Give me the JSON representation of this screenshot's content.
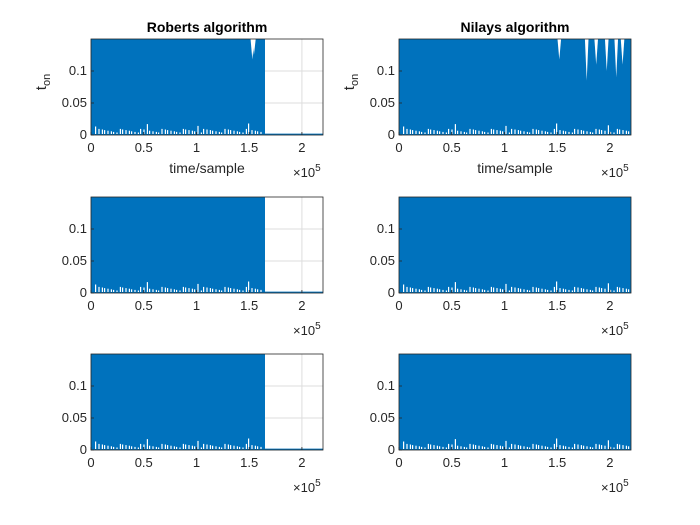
{
  "figure": {
    "background": "#ffffff",
    "axes_color": "#262626",
    "grid_color": "#dddddd",
    "series_color": "#0072bd"
  },
  "chart_data": [
    {
      "type": "area",
      "title": "Roberts algorithm",
      "xlabel": "time/sample",
      "ylabel_main": "t",
      "ylabel_sub": "on",
      "xlim": [
        0,
        220000
      ],
      "ylim": [
        0,
        0.15
      ],
      "xticks": [
        0,
        50000,
        100000,
        150000,
        200000
      ],
      "xtick_labels": [
        "0",
        "0.5",
        "1",
        "1.5",
        "2"
      ],
      "yticks": [
        0,
        0.05,
        0.1
      ],
      "ytick_labels": [
        "0",
        "0.05",
        "0.1"
      ],
      "exponent_label": "×10",
      "exponent_power": "5",
      "grid": true,
      "fill_end_x": 165000,
      "base_after_end": 0.001,
      "dips": [
        {
          "x": 153000,
          "y": 0.118
        },
        {
          "x": 154500,
          "y": 0.125
        }
      ]
    },
    {
      "type": "area",
      "title": "Nilays algorithm",
      "xlabel": "time/sample",
      "ylabel_main": "t",
      "ylabel_sub": "on",
      "xlim": [
        0,
        220000
      ],
      "ylim": [
        0,
        0.15
      ],
      "xticks": [
        0,
        50000,
        100000,
        150000,
        200000
      ],
      "xtick_labels": [
        "0",
        "0.5",
        "1",
        "1.5",
        "2"
      ],
      "yticks": [
        0,
        0.05,
        0.1
      ],
      "ytick_labels": [
        "0",
        "0.05",
        "0.1"
      ],
      "exponent_label": "×10",
      "exponent_power": "5",
      "grid": true,
      "fill_end_x": 220000,
      "base_after_end": 0,
      "dips": [
        {
          "x": 152000,
          "y": 0.118
        },
        {
          "x": 178000,
          "y": 0.085
        },
        {
          "x": 187000,
          "y": 0.11
        },
        {
          "x": 197000,
          "y": 0.1
        },
        {
          "x": 206000,
          "y": 0.09
        },
        {
          "x": 212000,
          "y": 0.11
        }
      ]
    },
    {
      "type": "area",
      "title": "",
      "xlabel": "",
      "ylabel_main": "",
      "ylabel_sub": "",
      "xlim": [
        0,
        220000
      ],
      "ylim": [
        0,
        0.15
      ],
      "xticks": [
        0,
        50000,
        100000,
        150000,
        200000
      ],
      "xtick_labels": [
        "0",
        "0.5",
        "1",
        "1.5",
        "2"
      ],
      "yticks": [
        0,
        0.05,
        0.1
      ],
      "ytick_labels": [
        "0",
        "0.05",
        "0.1"
      ],
      "exponent_label": "×10",
      "exponent_power": "5",
      "grid": true,
      "fill_end_x": 165000,
      "base_after_end": 0.001,
      "dips": []
    },
    {
      "type": "area",
      "title": "",
      "xlabel": "",
      "ylabel_main": "",
      "ylabel_sub": "",
      "xlim": [
        0,
        220000
      ],
      "ylim": [
        0,
        0.15
      ],
      "xticks": [
        0,
        50000,
        100000,
        150000,
        200000
      ],
      "xtick_labels": [
        "0",
        "0.5",
        "1",
        "1.5",
        "2"
      ],
      "yticks": [
        0,
        0.05,
        0.1
      ],
      "ytick_labels": [
        "0",
        "0.05",
        "0.1"
      ],
      "exponent_label": "×10",
      "exponent_power": "5",
      "grid": true,
      "fill_end_x": 220000,
      "base_after_end": 0,
      "dips": []
    },
    {
      "type": "area",
      "title": "",
      "xlabel": "",
      "ylabel_main": "",
      "ylabel_sub": "",
      "xlim": [
        0,
        220000
      ],
      "ylim": [
        0,
        0.15
      ],
      "xticks": [
        0,
        50000,
        100000,
        150000,
        200000
      ],
      "xtick_labels": [
        "0",
        "0.5",
        "1",
        "1.5",
        "2"
      ],
      "yticks": [
        0,
        0.05,
        0.1
      ],
      "ytick_labels": [
        "0",
        "0.05",
        "0.1"
      ],
      "exponent_label": "×10",
      "exponent_power": "5",
      "grid": true,
      "fill_end_x": 165000,
      "base_after_end": 0.001,
      "dips": []
    },
    {
      "type": "area",
      "title": "",
      "xlabel": "",
      "ylabel_main": "",
      "ylabel_sub": "",
      "xlim": [
        0,
        220000
      ],
      "ylim": [
        0,
        0.15
      ],
      "xticks": [
        0,
        50000,
        100000,
        150000,
        200000
      ],
      "xtick_labels": [
        "0",
        "0.5",
        "1",
        "1.5",
        "2"
      ],
      "yticks": [
        0,
        0.05,
        0.1
      ],
      "ytick_labels": [
        "0",
        "0.05",
        "0.1"
      ],
      "exponent_label": "×10",
      "exponent_power": "5",
      "grid": true,
      "fill_end_x": 220000,
      "base_after_end": 0,
      "dips": []
    }
  ]
}
